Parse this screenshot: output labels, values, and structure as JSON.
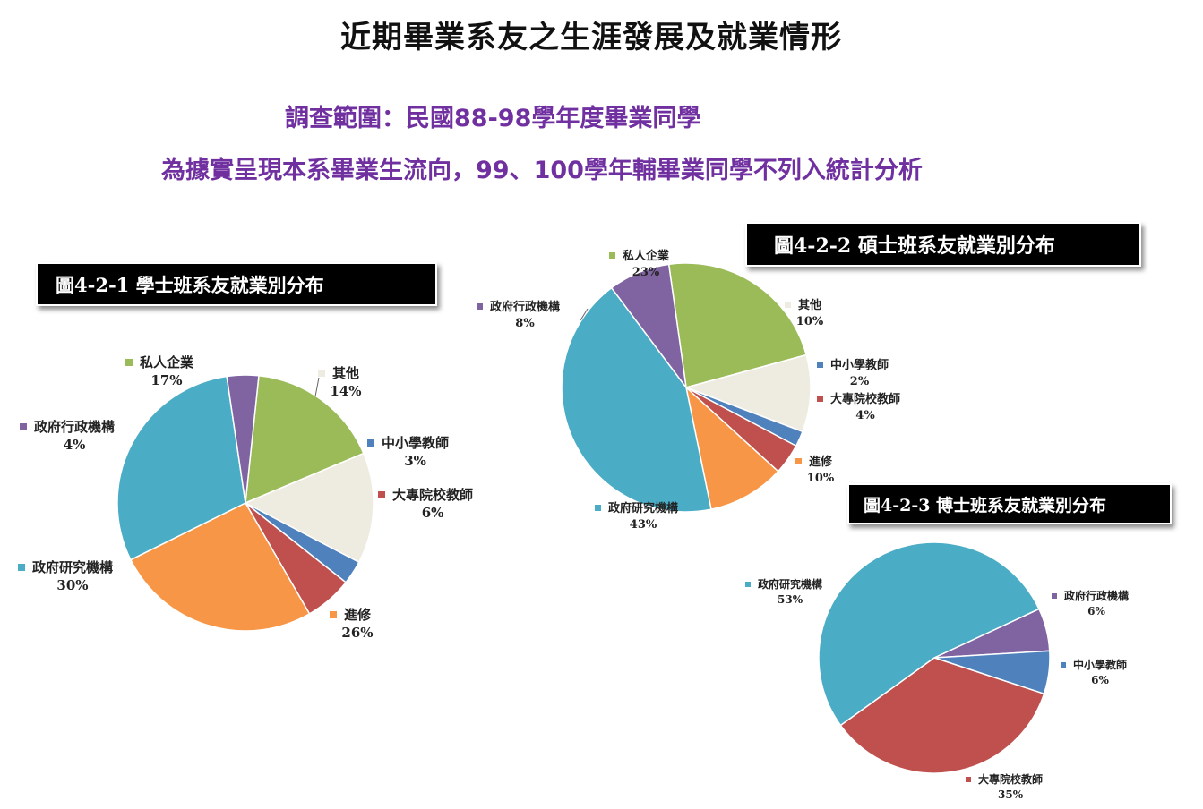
{
  "header": {
    "title": "近期畢業系友之生涯發展及就業情形",
    "scope": "調查範圍：民國88-98學年度畢業同學",
    "note": "為據實呈現本系畢業生流向，99、100學年輔畢業同學不列入統計分析"
  },
  "chart_data": [
    {
      "type": "pie",
      "title": "圖4-2-1 學士班系友就業別分布",
      "slices": [
        {
          "name": "私人企業",
          "value": 17,
          "label": "17%",
          "color": "#9bbb59"
        },
        {
          "name": "其他",
          "value": 14,
          "label": "14%",
          "color": "#eeece1"
        },
        {
          "name": "中小學教師",
          "value": 3,
          "label": "3%",
          "color": "#4f81bd"
        },
        {
          "name": "大專院校教師",
          "value": 6,
          "label": "6%",
          "color": "#c0504d"
        },
        {
          "name": "進修",
          "value": 26,
          "label": "26%",
          "color": "#f79646"
        },
        {
          "name": "政府研究機構",
          "value": 30,
          "label": "30%",
          "color": "#4bacc6"
        },
        {
          "name": "政府行政機構",
          "value": 4,
          "label": "4%",
          "color": "#8064a2"
        }
      ]
    },
    {
      "type": "pie",
      "title": "圖4-2-2  碩士班系友就業別分布",
      "slices": [
        {
          "name": "私人企業",
          "value": 23,
          "label": "23%",
          "color": "#9bbb59"
        },
        {
          "name": "其他",
          "value": 10,
          "label": "10%",
          "color": "#eeece1"
        },
        {
          "name": "中小學教師",
          "value": 2,
          "label": "2%",
          "color": "#4f81bd"
        },
        {
          "name": "大專院校教師",
          "value": 4,
          "label": "4%",
          "color": "#c0504d"
        },
        {
          "name": "進修",
          "value": 10,
          "label": "10%",
          "color": "#f79646"
        },
        {
          "name": "政府研究機構",
          "value": 43,
          "label": "43%",
          "color": "#4bacc6"
        },
        {
          "name": "政府行政機構",
          "value": 8,
          "label": "8%",
          "color": "#8064a2"
        }
      ]
    },
    {
      "type": "pie",
      "title": "圖4-2-3 博士班系友就業別分布",
      "slices": [
        {
          "name": "政府行政機構",
          "value": 6,
          "label": "6%",
          "color": "#8064a2"
        },
        {
          "name": "中小學教師",
          "value": 6,
          "label": "6%",
          "color": "#4f81bd"
        },
        {
          "name": "大專院校教師",
          "value": 35,
          "label": "35%",
          "color": "#c0504d"
        },
        {
          "name": "政府研究機構",
          "value": 53,
          "label": "53%",
          "color": "#4bacc6"
        }
      ]
    }
  ]
}
